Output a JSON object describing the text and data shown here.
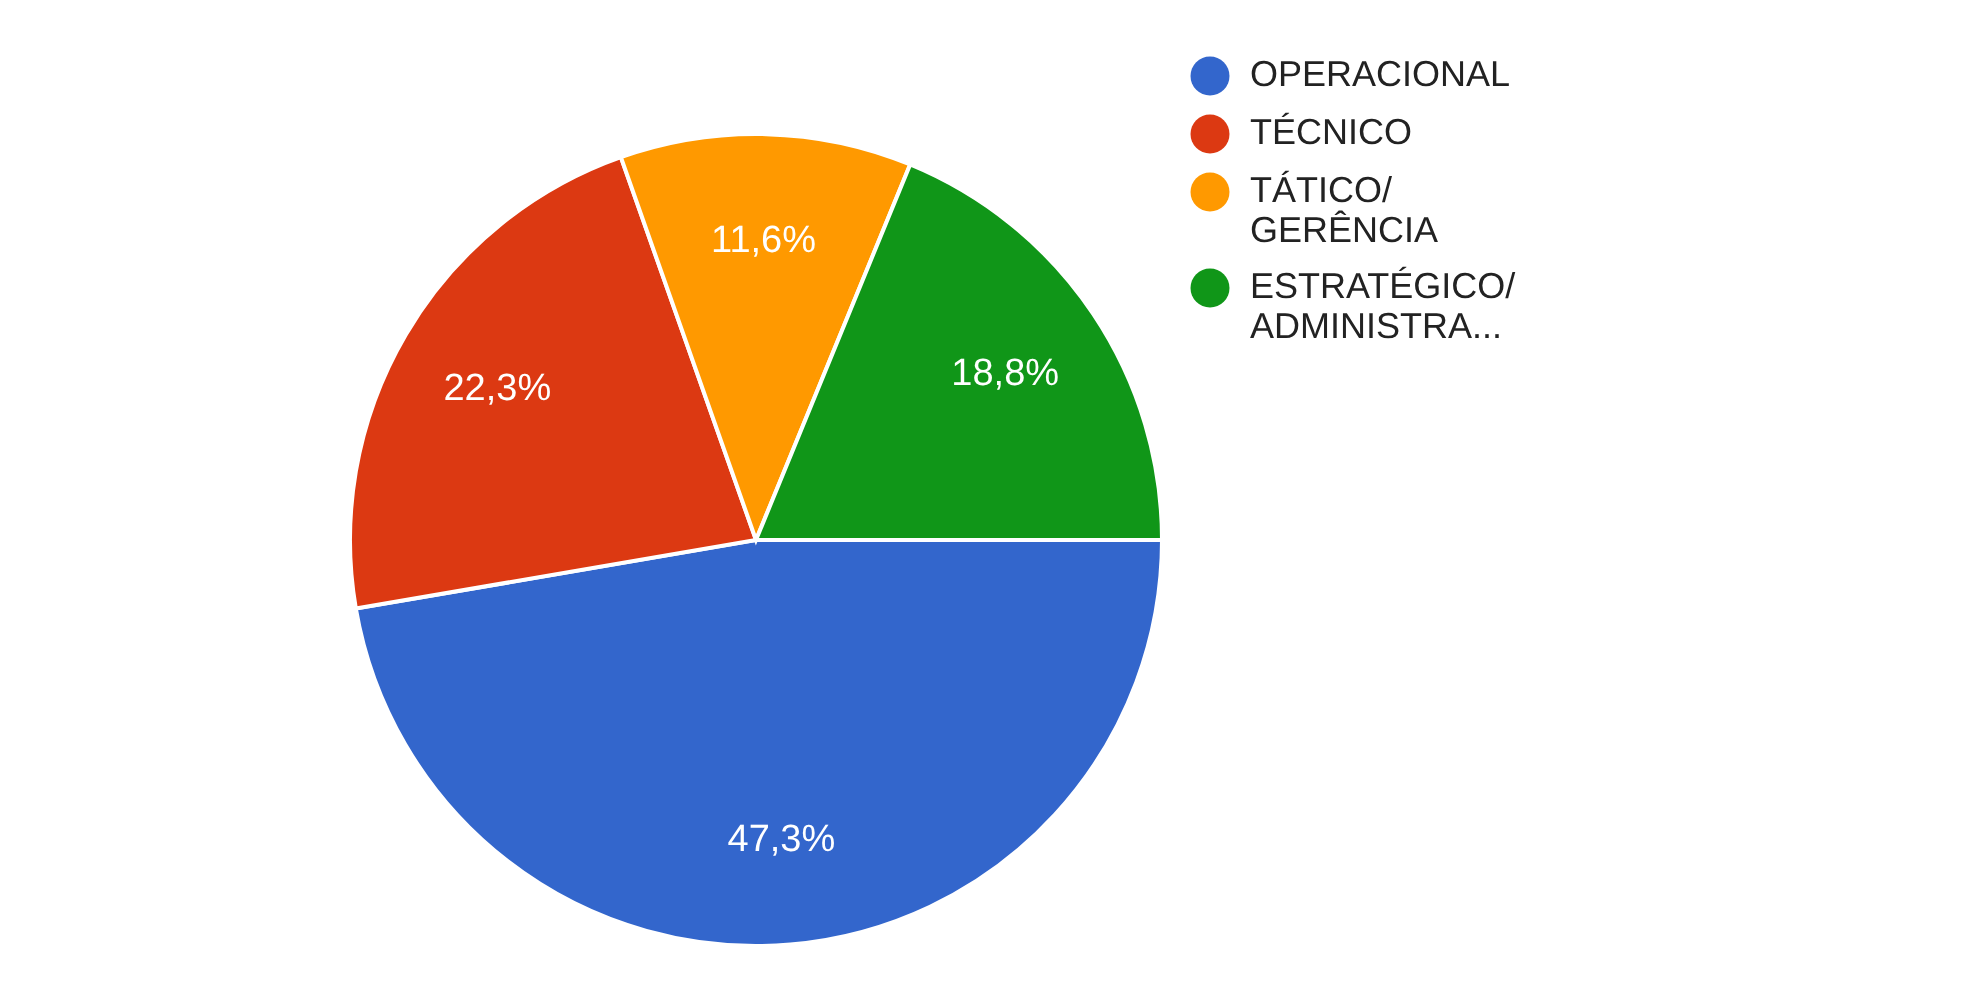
{
  "chart_data": {
    "type": "pie",
    "categories": [
      "OPERACIONAL",
      "TÉCNICO",
      "TÁTICO/ GERÊNCIA",
      "ESTRATÉGICO/ ADMINISTRA..."
    ],
    "values": [
      47.3,
      22.3,
      11.6,
      18.8
    ],
    "colors": [
      "#3366cc",
      "#dc3912",
      "#ff9900",
      "#109618"
    ],
    "value_labels": [
      "47,3%",
      "22,3%",
      "11,6%",
      "18,8%"
    ],
    "legend": "right"
  }
}
